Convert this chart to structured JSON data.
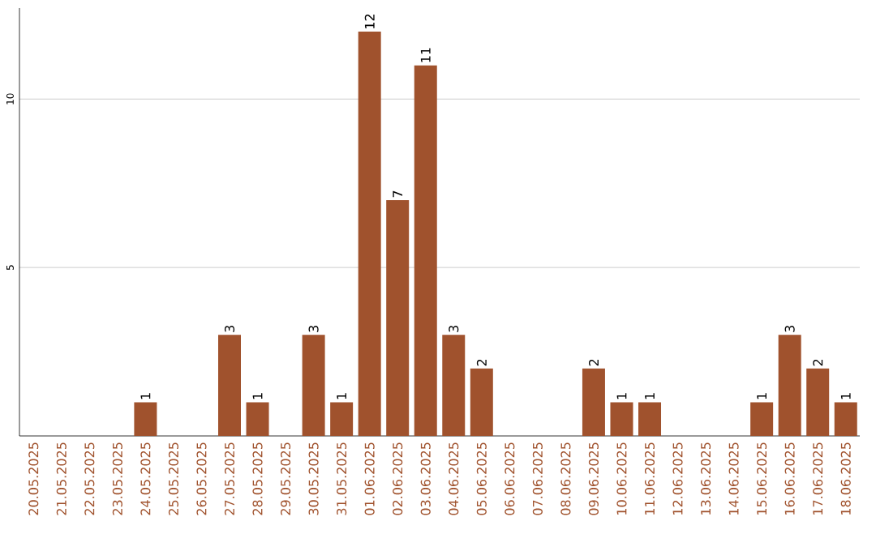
{
  "chart_data": {
    "type": "bar",
    "categories": [
      "20.05.2025",
      "21.05.2025",
      "22.05.2025",
      "23.05.2025",
      "24.05.2025",
      "25.05.2025",
      "26.05.2025",
      "27.05.2025",
      "28.05.2025",
      "29.05.2025",
      "30.05.2025",
      "31.05.2025",
      "01.06.2025",
      "02.06.2025",
      "03.06.2025",
      "04.06.2025",
      "05.06.2025",
      "06.06.2025",
      "07.06.2025",
      "08.06.2025",
      "09.06.2025",
      "10.06.2025",
      "11.06.2025",
      "12.06.2025",
      "13.06.2025",
      "14.06.2025",
      "15.06.2025",
      "16.06.2025",
      "17.06.2025",
      "18.06.2025"
    ],
    "values": [
      0,
      0,
      0,
      0,
      1,
      0,
      0,
      3,
      1,
      0,
      3,
      1,
      12,
      7,
      11,
      3,
      2,
      0,
      0,
      0,
      2,
      1,
      1,
      0,
      0,
      0,
      1,
      3,
      2,
      1
    ],
    "value_labels": [
      null,
      null,
      null,
      null,
      "1",
      null,
      null,
      "3",
      "1",
      null,
      "3",
      "1",
      "12",
      "7",
      "11",
      "3",
      "2",
      null,
      null,
      null,
      "2",
      "1",
      "1",
      null,
      null,
      null,
      "1",
      "3",
      "2",
      "1"
    ],
    "color": "#a0522d",
    "ylim": [
      0,
      12.7
    ],
    "yticks": [
      5,
      10
    ],
    "grid": "y"
  }
}
